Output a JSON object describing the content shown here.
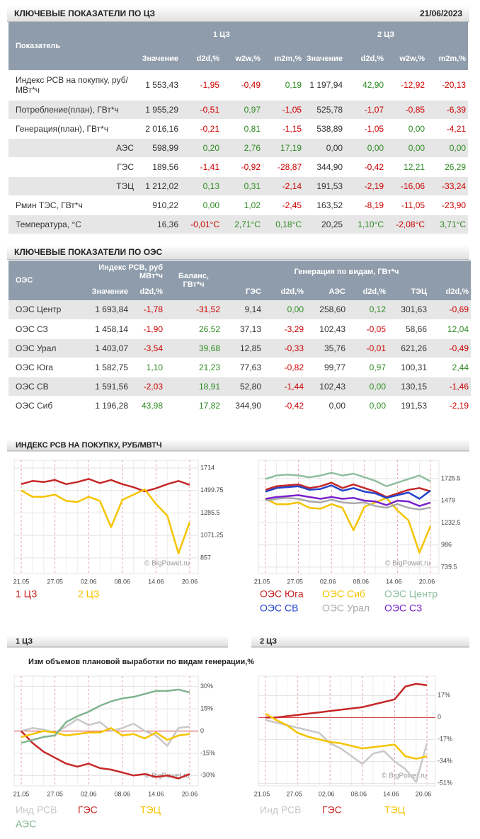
{
  "cz_table": {
    "title": "КЛЮЧЕВЫЕ ПОКАЗАТЕЛИ ПО ЦЗ",
    "date": "21/06/2023",
    "header": {
      "first": "Показатель",
      "groups": [
        "1 ЦЗ",
        "2 ЦЗ"
      ],
      "columns": [
        "Значение",
        "d2d,%",
        "w2w,%",
        "m2m,%",
        "Значение",
        "d2d,%",
        "w2w,%",
        "m2m,%"
      ]
    },
    "rows": [
      [
        "Индекс РСВ на покупку, руб/МВт*ч",
        "1 553,43",
        "-1,95",
        "-0,49",
        "0,19",
        "1 197,94",
        "42,90",
        "-12,92",
        "-20,13"
      ],
      [
        "Потребление(план), ГВт*ч",
        "1 955,29",
        "-0,51",
        "0,97",
        "-1,05",
        "525,78",
        "-1,07",
        "-0,85",
        "-6,39"
      ],
      [
        "Генерация(план), ГВт*ч",
        "2 016,16",
        "-0,21",
        "0,81",
        "-1,15",
        "538,89",
        "-1,05",
        "0,00",
        "-4,21"
      ],
      [
        "АЭС",
        "598,99",
        "0,20",
        "2,76",
        "17,19",
        "0,00",
        "0,00",
        "0,00",
        "0,00"
      ],
      [
        "ГЭС",
        "189,56",
        "-1,41",
        "-0,92",
        "-28,87",
        "344,90",
        "-0,42",
        "12,21",
        "26,29"
      ],
      [
        "ТЭЦ",
        "1 212,02",
        "0,13",
        "0,31",
        "-2,14",
        "191,53",
        "-2,19",
        "-16,06",
        "-33,24"
      ],
      [
        "Рмин ТЭС, ГВт*ч",
        "910,22",
        "0,00",
        "1,02",
        "-2,45",
        "163,52",
        "-8,19",
        "-11,05",
        "-23,90"
      ],
      [
        "Температура, °C",
        "16,36",
        "-0,01°C",
        "2,71°C",
        "0,18°C",
        "20,25",
        "1,10°C",
        "-2,08°C",
        "3,71°C"
      ]
    ]
  },
  "oes_table": {
    "title": "КЛЮЧЕВЫЕ ПОКАЗАТЕЛИ ПО ОЭС",
    "header": {
      "first": "ОЭС",
      "index": "Индекс РСВ, руб МВт*ч",
      "balance": "Баланс, ГВт*ч",
      "generation": "Генерация по видам, ГВт*ч",
      "columns": [
        "Значение",
        "d2d,%",
        "ГЭС",
        "d2d,%",
        "АЭС",
        "d2d,%",
        "ТЭЦ",
        "d2d,%"
      ]
    },
    "rows": [
      [
        "ОЭС Центр",
        "1 693,84",
        "-1,78",
        "-31,52",
        "9,14",
        "0,00",
        "258,60",
        "0,12",
        "301,63",
        "-0,69"
      ],
      [
        "ОЭС СЗ",
        "1 458,14",
        "-1,90",
        "26,52",
        "37,13",
        "-3,29",
        "102,43",
        "-0,05",
        "58,66",
        "12,04"
      ],
      [
        "ОЭС Урал",
        "1 403,07",
        "-3,54",
        "39,68",
        "12,85",
        "-0,33",
        "35,76",
        "-0,01",
        "621,26",
        "-0,49"
      ],
      [
        "ОЭС Юга",
        "1 582,75",
        "1,10",
        "21,23",
        "77,63",
        "-0,82",
        "99,77",
        "0,97",
        "100,31",
        "2,44"
      ],
      [
        "ОЭС СВ",
        "1 591,56",
        "-2,03",
        "18,91",
        "52,80",
        "-1,44",
        "102,43",
        "0,00",
        "130,15",
        "-1,46"
      ],
      [
        "ОЭС Сиб",
        "1 196,28",
        "43,98",
        "17,82",
        "344,90",
        "-0,42",
        "0,00",
        "0,00",
        "191,53",
        "-2,19"
      ]
    ]
  },
  "chart_data": [
    {
      "type": "line",
      "title": "ИНДЕКС РСВ НА ПОКУПКУ, РУБ/МВТЧ",
      "watermark": "© BigPowet.ru",
      "categories": [
        "21.05",
        null,
        null,
        "27.05",
        null,
        null,
        "02.06",
        null,
        null,
        "08.06",
        null,
        null,
        "14.06",
        null,
        null,
        "20.06"
      ],
      "ylim": [
        708,
        1788
      ],
      "yticks": [
        1714,
        1499.75,
        1285.5,
        1071.25,
        857
      ],
      "grid": true,
      "series": [
        {
          "name": "1 ЦЗ",
          "color": "#c62828",
          "values": [
            1560,
            1590,
            1580,
            1600,
            1560,
            1580,
            1610,
            1570,
            1600,
            1560,
            1530,
            1490,
            1520,
            1560,
            1590,
            1553
          ]
        },
        {
          "name": "2 ЦЗ",
          "color": "#f5c400",
          "values": [
            1500,
            1440,
            1440,
            1460,
            1400,
            1390,
            1440,
            1400,
            1150,
            1410,
            1460,
            1510,
            1370,
            1260,
            900,
            1198
          ]
        }
      ]
    },
    {
      "type": "line",
      "watermark": "© BigPowet.ru",
      "categories": [
        "21.05",
        null,
        null,
        "27.05",
        null,
        null,
        "02.06",
        null,
        null,
        "08.06",
        null,
        null,
        "14.06",
        null,
        null,
        "20.06"
      ],
      "ylim": [
        668,
        1930
      ],
      "yticks": [
        1725.5,
        1479,
        1232.5,
        986,
        739.5
      ],
      "grid": true,
      "series": [
        {
          "name": "ОЭС Юга",
          "color": "#c62828",
          "values": [
            1600,
            1640,
            1650,
            1660,
            1620,
            1640,
            1680,
            1620,
            1660,
            1620,
            1580,
            1520,
            1560,
            1600,
            1620,
            1583
          ]
        },
        {
          "name": "ОЭС Сиб",
          "color": "#f5c400",
          "values": [
            1500,
            1440,
            1440,
            1460,
            1400,
            1390,
            1440,
            1400,
            1150,
            1410,
            1460,
            1510,
            1370,
            1260,
            900,
            1196
          ]
        },
        {
          "name": "ОЭС Центр",
          "color": "#8fbf9f",
          "values": [
            1720,
            1760,
            1770,
            1760,
            1740,
            1760,
            1790,
            1760,
            1780,
            1740,
            1700,
            1640,
            1680,
            1720,
            1760,
            1694
          ]
        },
        {
          "name": "ОЭС СВ",
          "color": "#2244cc",
          "values": [
            1580,
            1620,
            1630,
            1640,
            1600,
            1610,
            1650,
            1590,
            1620,
            1580,
            1560,
            1510,
            1540,
            1570,
            1500,
            1592
          ]
        },
        {
          "name": "ОЭС Урал",
          "color": "#aaaaaa",
          "values": [
            1480,
            1500,
            1510,
            1500,
            1470,
            1460,
            1490,
            1460,
            1450,
            1460,
            1420,
            1400,
            1440,
            1400,
            1380,
            1403
          ]
        },
        {
          "name": "ОЭС СЗ",
          "color": "#7a22cc",
          "values": [
            1500,
            1520,
            1530,
            1540,
            1520,
            1500,
            1520,
            1500,
            1510,
            1480,
            1470,
            1430,
            1480,
            1470,
            1420,
            1458
          ]
        }
      ]
    },
    {
      "type": "line",
      "title": "1 ЦЗ",
      "subtitle": "Изм объемов плановой выработки по видам генерации,%",
      "watermark": "© BigPowet.ru",
      "categories": [
        "21.05",
        null,
        null,
        "27.05",
        null,
        null,
        "02.06",
        null,
        null,
        "08.06",
        null,
        null,
        "14.06",
        null,
        null,
        "20.06"
      ],
      "ylim": [
        -37,
        37
      ],
      "yticks": [
        {
          "value": 30,
          "label": "30%"
        },
        {
          "value": 15,
          "label": "15%"
        },
        0,
        {
          "value": -15,
          "label": "-15%"
        },
        {
          "value": -30,
          "label": "-30%"
        }
      ],
      "grid": true,
      "series": [
        {
          "name": "Инд РСВ",
          "color": "#c8c8c8",
          "values": [
            0,
            2,
            1,
            -1,
            3,
            8,
            4,
            6,
            0,
            2,
            5,
            0,
            -3,
            -10,
            2,
            3
          ]
        },
        {
          "name": "ГЭС",
          "color": "#c62828",
          "values": [
            0,
            -8,
            -14,
            -18,
            -22,
            -24,
            -22,
            -25,
            -26,
            -28,
            -30,
            -29,
            -31,
            -30,
            -32,
            -29
          ]
        },
        {
          "name": "ТЭЦ",
          "color": "#f5c400",
          "values": [
            -4,
            -2,
            0,
            -1,
            -3,
            -2,
            -1,
            -1,
            2,
            -3,
            -2,
            -5,
            -1,
            -6,
            -3,
            -2
          ]
        },
        {
          "name": "АЭС",
          "color": "#7fb58f",
          "values": [
            -8,
            -6,
            -4,
            -3,
            6,
            10,
            13,
            17,
            20,
            22,
            23,
            25,
            27,
            27,
            28,
            26
          ]
        }
      ]
    },
    {
      "type": "line",
      "title": "2 ЦЗ",
      "watermark": "© BigPowet.ru",
      "categories": [
        "21.05",
        null,
        null,
        "27.05",
        null,
        null,
        "02.06",
        null,
        null,
        "08.06",
        null,
        null,
        "14.06",
        null,
        null,
        "20.06"
      ],
      "ylim": [
        -53,
        32
      ],
      "yticks": [
        {
          "value": 17,
          "label": "17%"
        },
        0,
        {
          "value": -17,
          "label": "-17%"
        },
        {
          "value": -34,
          "label": "-34%"
        },
        {
          "value": -51,
          "label": "-51%"
        }
      ],
      "grid": true,
      "series": [
        {
          "name": "Инд РСВ",
          "color": "#c8c8c8",
          "values": [
            -2,
            -4,
            -6,
            -8,
            -10,
            -12,
            -20,
            -24,
            -30,
            -36,
            -28,
            -26,
            -34,
            -40,
            -50,
            -20
          ]
        },
        {
          "name": "ГЭС",
          "color": "#c62828",
          "values": [
            0,
            0,
            1,
            2,
            3,
            4,
            5,
            6,
            7,
            8,
            10,
            12,
            14,
            24,
            26,
            25
          ]
        },
        {
          "name": "ТЭЦ",
          "color": "#f5c400",
          "values": [
            3,
            -2,
            -6,
            -12,
            -15,
            -17,
            -19,
            -20,
            -22,
            -24,
            -23,
            -22,
            -21,
            -30,
            -32,
            -30
          ]
        }
      ]
    }
  ]
}
